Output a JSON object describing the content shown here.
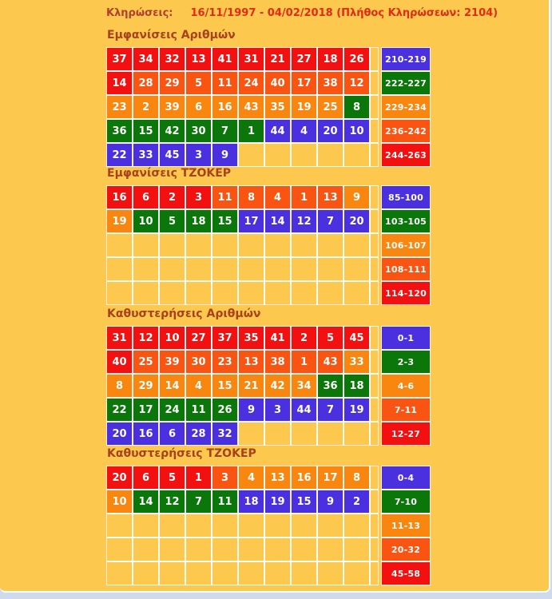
{
  "header": {
    "label": "Κληρώσεις:",
    "value": "16/11/1997 - 04/02/2018  (Πλήθος Κληρώσεων: 2104)"
  },
  "colors": {
    "background": "#FCC84D",
    "bottom_strip": "#CFDAEC",
    "red": "#F21010",
    "orangered": "#FA5413",
    "orange": "#F8860F",
    "green": "#0B770B",
    "blue": "#4A30DF",
    "header_label_color": "#B04030",
    "header_value_color": "#E02B16",
    "title_color": "#A8411C"
  },
  "sections": [
    {
      "title": "Εμφανίσεις Αριθμών",
      "rows": [
        [
          {
            "v": "37",
            "c": "red"
          },
          {
            "v": "34",
            "c": "red"
          },
          {
            "v": "32",
            "c": "red"
          },
          {
            "v": "13",
            "c": "red"
          },
          {
            "v": "41",
            "c": "red"
          },
          {
            "v": "31",
            "c": "red"
          },
          {
            "v": "21",
            "c": "red"
          },
          {
            "v": "27",
            "c": "red"
          },
          {
            "v": "18",
            "c": "red"
          },
          {
            "v": "26",
            "c": "red"
          }
        ],
        [
          {
            "v": "14",
            "c": "red"
          },
          {
            "v": "28",
            "c": "orangered"
          },
          {
            "v": "29",
            "c": "orangered"
          },
          {
            "v": "5",
            "c": "orangered"
          },
          {
            "v": "11",
            "c": "orangered"
          },
          {
            "v": "24",
            "c": "orangered"
          },
          {
            "v": "40",
            "c": "orangered"
          },
          {
            "v": "17",
            "c": "orangered"
          },
          {
            "v": "38",
            "c": "orangered"
          },
          {
            "v": "12",
            "c": "orangered"
          }
        ],
        [
          {
            "v": "23",
            "c": "orange"
          },
          {
            "v": "2",
            "c": "orange"
          },
          {
            "v": "39",
            "c": "orange"
          },
          {
            "v": "6",
            "c": "orange"
          },
          {
            "v": "16",
            "c": "orange"
          },
          {
            "v": "43",
            "c": "orange"
          },
          {
            "v": "35",
            "c": "orange"
          },
          {
            "v": "19",
            "c": "orange"
          },
          {
            "v": "25",
            "c": "orange"
          },
          {
            "v": "8",
            "c": "green"
          }
        ],
        [
          {
            "v": "36",
            "c": "green"
          },
          {
            "v": "15",
            "c": "green"
          },
          {
            "v": "42",
            "c": "green"
          },
          {
            "v": "30",
            "c": "green"
          },
          {
            "v": "7",
            "c": "green"
          },
          {
            "v": "1",
            "c": "green"
          },
          {
            "v": "44",
            "c": "blue"
          },
          {
            "v": "4",
            "c": "blue"
          },
          {
            "v": "20",
            "c": "blue"
          },
          {
            "v": "10",
            "c": "blue"
          }
        ],
        [
          {
            "v": "22",
            "c": "blue"
          },
          {
            "v": "33",
            "c": "blue"
          },
          {
            "v": "45",
            "c": "blue"
          },
          {
            "v": "3",
            "c": "blue"
          },
          {
            "v": "9",
            "c": "blue"
          },
          null,
          null,
          null,
          null,
          null
        ]
      ],
      "legend": [
        {
          "label": "210-219",
          "c": "blue"
        },
        {
          "label": "222-227",
          "c": "green"
        },
        {
          "label": "229-234",
          "c": "orange"
        },
        {
          "label": "236-242",
          "c": "orangered"
        },
        {
          "label": "244-263",
          "c": "red"
        }
      ]
    },
    {
      "title": "Εμφανίσεις ΤΖΟΚΕΡ",
      "rows": [
        [
          {
            "v": "16",
            "c": "red"
          },
          {
            "v": "6",
            "c": "red"
          },
          {
            "v": "2",
            "c": "red"
          },
          {
            "v": "3",
            "c": "red"
          },
          {
            "v": "11",
            "c": "orangered"
          },
          {
            "v": "8",
            "c": "orangered"
          },
          {
            "v": "4",
            "c": "orangered"
          },
          {
            "v": "1",
            "c": "orangered"
          },
          {
            "v": "13",
            "c": "orangered"
          },
          {
            "v": "9",
            "c": "orange"
          }
        ],
        [
          {
            "v": "19",
            "c": "orange"
          },
          {
            "v": "10",
            "c": "green"
          },
          {
            "v": "5",
            "c": "green"
          },
          {
            "v": "18",
            "c": "green"
          },
          {
            "v": "15",
            "c": "green"
          },
          {
            "v": "17",
            "c": "blue"
          },
          {
            "v": "14",
            "c": "blue"
          },
          {
            "v": "12",
            "c": "blue"
          },
          {
            "v": "7",
            "c": "blue"
          },
          {
            "v": "20",
            "c": "blue"
          }
        ],
        [
          null,
          null,
          null,
          null,
          null,
          null,
          null,
          null,
          null,
          null
        ],
        [
          null,
          null,
          null,
          null,
          null,
          null,
          null,
          null,
          null,
          null
        ],
        [
          null,
          null,
          null,
          null,
          null,
          null,
          null,
          null,
          null,
          null
        ]
      ],
      "legend": [
        {
          "label": "85-100",
          "c": "blue"
        },
        {
          "label": "103-105",
          "c": "green"
        },
        {
          "label": "106-107",
          "c": "orange"
        },
        {
          "label": "108-111",
          "c": "orangered"
        },
        {
          "label": "114-120",
          "c": "red"
        }
      ]
    },
    {
      "title": "Καθυστερήσεις Αριθμών",
      "rows": [
        [
          {
            "v": "31",
            "c": "red"
          },
          {
            "v": "12",
            "c": "red"
          },
          {
            "v": "10",
            "c": "red"
          },
          {
            "v": "27",
            "c": "red"
          },
          {
            "v": "37",
            "c": "red"
          },
          {
            "v": "35",
            "c": "red"
          },
          {
            "v": "41",
            "c": "red"
          },
          {
            "v": "2",
            "c": "red"
          },
          {
            "v": "5",
            "c": "red"
          },
          {
            "v": "45",
            "c": "red"
          }
        ],
        [
          {
            "v": "40",
            "c": "red"
          },
          {
            "v": "25",
            "c": "orangered"
          },
          {
            "v": "39",
            "c": "orangered"
          },
          {
            "v": "30",
            "c": "orangered"
          },
          {
            "v": "23",
            "c": "orangered"
          },
          {
            "v": "13",
            "c": "orangered"
          },
          {
            "v": "38",
            "c": "orangered"
          },
          {
            "v": "1",
            "c": "orangered"
          },
          {
            "v": "43",
            "c": "orangered"
          },
          {
            "v": "33",
            "c": "orange"
          }
        ],
        [
          {
            "v": "8",
            "c": "orange"
          },
          {
            "v": "29",
            "c": "orange"
          },
          {
            "v": "14",
            "c": "orange"
          },
          {
            "v": "4",
            "c": "orange"
          },
          {
            "v": "15",
            "c": "orange"
          },
          {
            "v": "21",
            "c": "orange"
          },
          {
            "v": "42",
            "c": "orange"
          },
          {
            "v": "34",
            "c": "orange"
          },
          {
            "v": "36",
            "c": "green"
          },
          {
            "v": "18",
            "c": "green"
          }
        ],
        [
          {
            "v": "22",
            "c": "green"
          },
          {
            "v": "17",
            "c": "green"
          },
          {
            "v": "24",
            "c": "green"
          },
          {
            "v": "11",
            "c": "green"
          },
          {
            "v": "26",
            "c": "green"
          },
          {
            "v": "9",
            "c": "blue"
          },
          {
            "v": "3",
            "c": "blue"
          },
          {
            "v": "44",
            "c": "blue"
          },
          {
            "v": "7",
            "c": "blue"
          },
          {
            "v": "19",
            "c": "blue"
          }
        ],
        [
          {
            "v": "20",
            "c": "blue"
          },
          {
            "v": "16",
            "c": "blue"
          },
          {
            "v": "6",
            "c": "blue"
          },
          {
            "v": "28",
            "c": "blue"
          },
          {
            "v": "32",
            "c": "blue"
          },
          null,
          null,
          null,
          null,
          null
        ]
      ],
      "legend": [
        {
          "label": "0-1",
          "c": "blue"
        },
        {
          "label": "2-3",
          "c": "green"
        },
        {
          "label": "4-6",
          "c": "orange"
        },
        {
          "label": "7-11",
          "c": "orangered"
        },
        {
          "label": "12-27",
          "c": "red"
        }
      ]
    },
    {
      "title": "Καθυστερήσεις ΤΖΟΚΕΡ",
      "rows": [
        [
          {
            "v": "20",
            "c": "red"
          },
          {
            "v": "6",
            "c": "red"
          },
          {
            "v": "5",
            "c": "red"
          },
          {
            "v": "1",
            "c": "red"
          },
          {
            "v": "3",
            "c": "orangered"
          },
          {
            "v": "4",
            "c": "orange"
          },
          {
            "v": "13",
            "c": "orange"
          },
          {
            "v": "16",
            "c": "orange"
          },
          {
            "v": "17",
            "c": "orange"
          },
          {
            "v": "8",
            "c": "orange"
          }
        ],
        [
          {
            "v": "10",
            "c": "orange"
          },
          {
            "v": "14",
            "c": "green"
          },
          {
            "v": "12",
            "c": "green"
          },
          {
            "v": "7",
            "c": "green"
          },
          {
            "v": "11",
            "c": "green"
          },
          {
            "v": "18",
            "c": "blue"
          },
          {
            "v": "19",
            "c": "blue"
          },
          {
            "v": "15",
            "c": "blue"
          },
          {
            "v": "9",
            "c": "blue"
          },
          {
            "v": "2",
            "c": "blue"
          }
        ],
        [
          null,
          null,
          null,
          null,
          null,
          null,
          null,
          null,
          null,
          null
        ],
        [
          null,
          null,
          null,
          null,
          null,
          null,
          null,
          null,
          null,
          null
        ],
        [
          null,
          null,
          null,
          null,
          null,
          null,
          null,
          null,
          null,
          null
        ]
      ],
      "legend": [
        {
          "label": "0-4",
          "c": "blue"
        },
        {
          "label": "7-10",
          "c": "green"
        },
        {
          "label": "11-13",
          "c": "orange"
        },
        {
          "label": "20-32",
          "c": "orangered"
        },
        {
          "label": "45-58",
          "c": "red"
        }
      ]
    }
  ]
}
